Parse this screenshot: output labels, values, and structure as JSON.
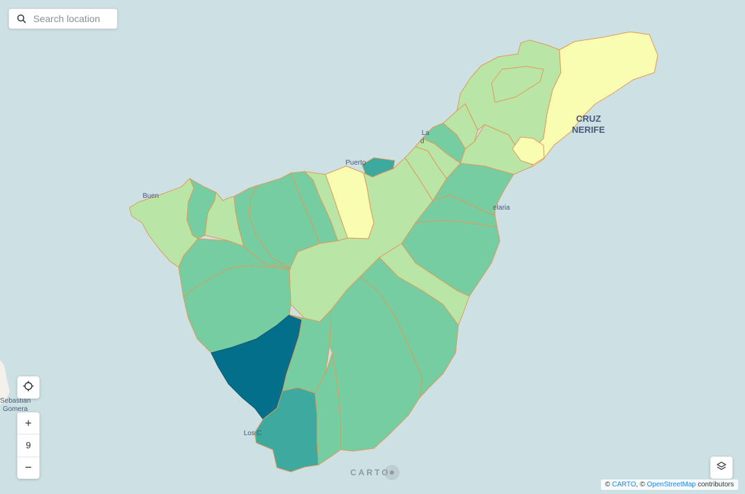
{
  "search": {
    "placeholder": "Search location"
  },
  "zoom": {
    "in_label": "+",
    "level": "9",
    "out_label": "−"
  },
  "attribution": {
    "copyright_1": "©",
    "carto": "CARTO",
    "separator": ", ©",
    "osm": "OpenStreetMap",
    "contributors": "contributors"
  },
  "carto_logo": {
    "text": "CARTO"
  },
  "map_labels": {
    "santa_cruz_line1": "CRUZ",
    "santa_cruz_line2": "NERIFE",
    "la_laguna_1": "La",
    "la_laguna_2": "d",
    "puerto": "Puerto",
    "buenavista": "Buen",
    "candelaria": "elaria",
    "los_cristianos": "Los C",
    "san_sebastian_1": "Sebastian",
    "san_sebastian_2": "Gomera"
  },
  "colors": {
    "sea": "#cde0e3",
    "class_1": "#f8fdb2",
    "class_2": "#b9e5a6",
    "class_3": "#77cda2",
    "class_4": "#3ea99e",
    "class_5": "#046f8a",
    "border": "#e09a58"
  }
}
